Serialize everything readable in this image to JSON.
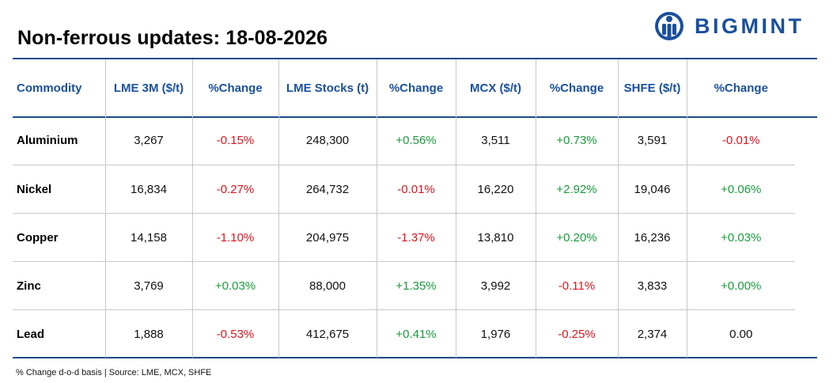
{
  "title": "Non-ferrous updates: 18-08-2026",
  "logo": {
    "text": "BIGMINT",
    "icon": "bigmint-logo-icon",
    "color": "#1a4f9c"
  },
  "colors": {
    "accent": "#1a4f9c",
    "positive": "#1a9a3c",
    "negative": "#e0141e",
    "rule": "#1e4c86"
  },
  "table": {
    "headers": [
      "Commodity",
      "LME 3M ($/t)",
      "%Change",
      "LME Stocks (t)",
      "%Change",
      "MCX ($/t)",
      "%Change",
      "SHFE ($/t)",
      "%Change"
    ],
    "rows": [
      {
        "commodity": "Aluminium",
        "lme3m": "3,267",
        "lme3m_chg": "-0.15%",
        "lme_stocks": "248,300",
        "lme_stocks_chg": "+0.56%",
        "mcx": "3,511",
        "mcx_chg": "+0.73%",
        "shfe": "3,591",
        "shfe_chg": "-0.01%"
      },
      {
        "commodity": "Nickel",
        "lme3m": "16,834",
        "lme3m_chg": "-0.27%",
        "lme_stocks": "264,732",
        "lme_stocks_chg": "-0.01%",
        "mcx": "16,220",
        "mcx_chg": "+2.92%",
        "shfe": "19,046",
        "shfe_chg": "+0.06%"
      },
      {
        "commodity": "Copper",
        "lme3m": "14,158",
        "lme3m_chg": "-1.10%",
        "lme_stocks": "204,975",
        "lme_stocks_chg": "-1.37%",
        "mcx": "13,810",
        "mcx_chg": "+0.20%",
        "shfe": "16,236",
        "shfe_chg": "+0.03%"
      },
      {
        "commodity": "Zinc",
        "lme3m": "3,769",
        "lme3m_chg": "+0.03%",
        "lme_stocks": "88,000",
        "lme_stocks_chg": "+1.35%",
        "mcx": "3,992",
        "mcx_chg": "-0.11%",
        "shfe": "3,833",
        "shfe_chg": "+0.00%"
      },
      {
        "commodity": "Lead",
        "lme3m": "1,888",
        "lme3m_chg": "-0.53%",
        "lme_stocks": "412,675",
        "lme_stocks_chg": "+0.41%",
        "mcx": "1,976",
        "mcx_chg": "-0.25%",
        "shfe": "2,374",
        "shfe_chg": "0.00"
      }
    ]
  },
  "footnote": "% Change d-o-d basis | Source: LME, MCX, SHFE"
}
